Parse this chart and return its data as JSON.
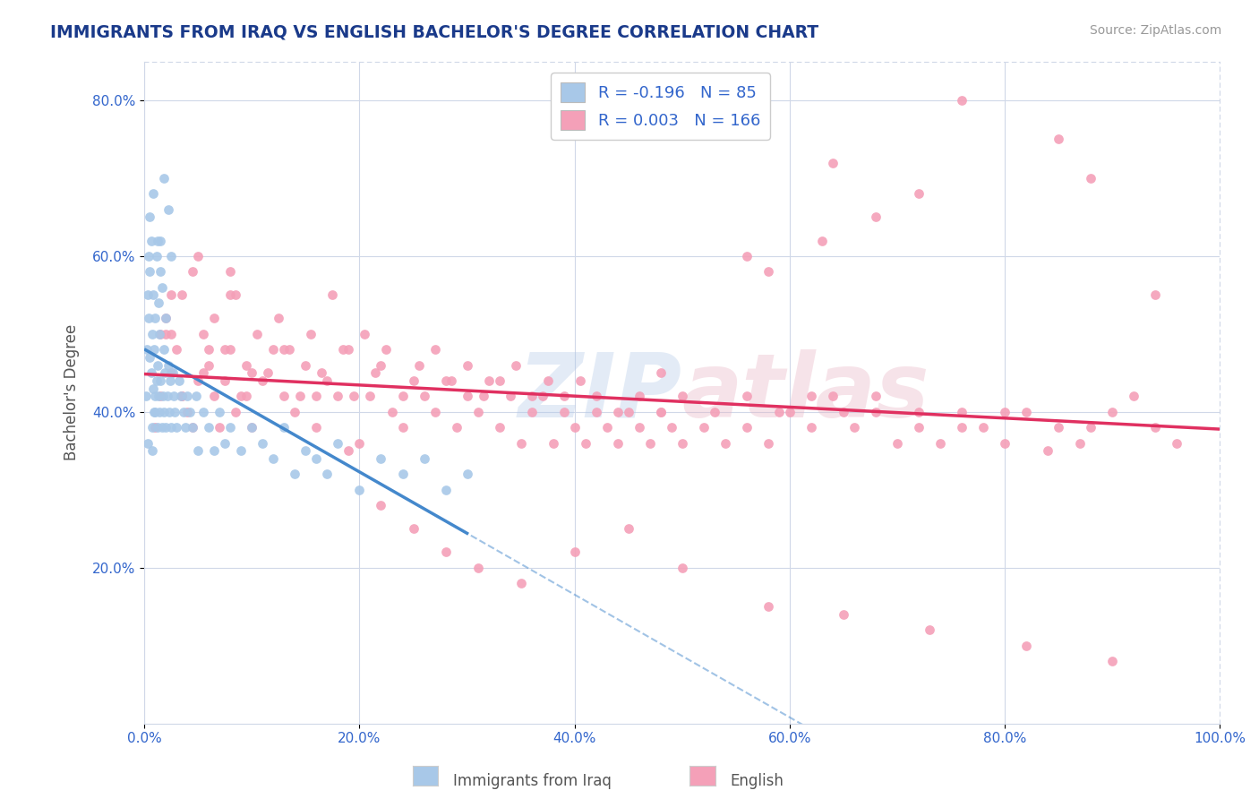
{
  "title": "IMMIGRANTS FROM IRAQ VS ENGLISH BACHELOR'S DEGREE CORRELATION CHART",
  "source_text": "Source: ZipAtlas.com",
  "ylabel": "Bachelor's Degree",
  "xlim": [
    0,
    1.0
  ],
  "ylim": [
    0,
    0.85
  ],
  "xtick_labels": [
    "0.0%",
    "20.0%",
    "40.0%",
    "60.0%",
    "80.0%",
    "100.0%"
  ],
  "xtick_vals": [
    0,
    0.2,
    0.4,
    0.6,
    0.8,
    1.0
  ],
  "ytick_labels": [
    "20.0%",
    "40.0%",
    "60.0%",
    "80.0%"
  ],
  "ytick_vals": [
    0.2,
    0.4,
    0.6,
    0.8
  ],
  "blue_R": -0.196,
  "blue_N": 85,
  "pink_R": 0.003,
  "pink_N": 166,
  "legend_label_blue": "Immigrants from Iraq",
  "legend_label_pink": "English",
  "blue_color": "#a8c8e8",
  "pink_color": "#f4a0b8",
  "blue_line_color": "#4488cc",
  "pink_line_color": "#e03060",
  "watermark_zip": "ZIP",
  "watermark_atlas": "atlas",
  "background_color": "#ffffff",
  "grid_color": "#d0d8e8",
  "title_color": "#1a3a8a",
  "source_color": "#999999",
  "tick_color": "#3366cc",
  "label_color": "#555555",
  "blue_scatter_x": [
    0.001,
    0.002,
    0.003,
    0.004,
    0.004,
    0.005,
    0.005,
    0.006,
    0.006,
    0.007,
    0.007,
    0.008,
    0.008,
    0.009,
    0.009,
    0.01,
    0.01,
    0.011,
    0.011,
    0.012,
    0.012,
    0.013,
    0.013,
    0.014,
    0.014,
    0.015,
    0.015,
    0.016,
    0.016,
    0.017,
    0.018,
    0.018,
    0.019,
    0.02,
    0.02,
    0.021,
    0.022,
    0.023,
    0.024,
    0.025,
    0.026,
    0.027,
    0.028,
    0.03,
    0.032,
    0.034,
    0.036,
    0.038,
    0.04,
    0.042,
    0.045,
    0.048,
    0.05,
    0.055,
    0.06,
    0.065,
    0.07,
    0.075,
    0.08,
    0.09,
    0.1,
    0.11,
    0.12,
    0.13,
    0.14,
    0.15,
    0.16,
    0.17,
    0.18,
    0.2,
    0.22,
    0.24,
    0.26,
    0.28,
    0.3,
    0.005,
    0.008,
    0.012,
    0.015,
    0.018,
    0.022,
    0.025,
    0.003,
    0.007,
    0.01
  ],
  "blue_scatter_y": [
    0.42,
    0.48,
    0.55,
    0.52,
    0.6,
    0.47,
    0.58,
    0.45,
    0.62,
    0.38,
    0.5,
    0.43,
    0.55,
    0.4,
    0.48,
    0.42,
    0.52,
    0.44,
    0.6,
    0.38,
    0.46,
    0.42,
    0.54,
    0.4,
    0.5,
    0.44,
    0.62,
    0.38,
    0.56,
    0.42,
    0.48,
    0.4,
    0.45,
    0.38,
    0.52,
    0.42,
    0.46,
    0.4,
    0.44,
    0.38,
    0.45,
    0.42,
    0.4,
    0.38,
    0.44,
    0.42,
    0.4,
    0.38,
    0.42,
    0.4,
    0.38,
    0.42,
    0.35,
    0.4,
    0.38,
    0.35,
    0.4,
    0.36,
    0.38,
    0.35,
    0.38,
    0.36,
    0.34,
    0.38,
    0.32,
    0.35,
    0.34,
    0.32,
    0.36,
    0.3,
    0.34,
    0.32,
    0.34,
    0.3,
    0.32,
    0.65,
    0.68,
    0.62,
    0.58,
    0.7,
    0.66,
    0.6,
    0.36,
    0.35,
    0.4
  ],
  "pink_scatter_x": [
    0.01,
    0.015,
    0.02,
    0.025,
    0.03,
    0.035,
    0.04,
    0.045,
    0.05,
    0.055,
    0.06,
    0.065,
    0.07,
    0.075,
    0.08,
    0.085,
    0.09,
    0.095,
    0.1,
    0.11,
    0.12,
    0.13,
    0.14,
    0.15,
    0.16,
    0.17,
    0.18,
    0.19,
    0.2,
    0.21,
    0.22,
    0.23,
    0.24,
    0.25,
    0.26,
    0.27,
    0.28,
    0.29,
    0.3,
    0.31,
    0.32,
    0.33,
    0.34,
    0.35,
    0.36,
    0.37,
    0.38,
    0.39,
    0.4,
    0.41,
    0.42,
    0.43,
    0.44,
    0.45,
    0.46,
    0.47,
    0.48,
    0.49,
    0.5,
    0.52,
    0.54,
    0.56,
    0.58,
    0.6,
    0.62,
    0.64,
    0.66,
    0.68,
    0.7,
    0.72,
    0.74,
    0.76,
    0.78,
    0.8,
    0.82,
    0.85,
    0.87,
    0.9,
    0.94,
    0.96,
    0.025,
    0.035,
    0.045,
    0.055,
    0.065,
    0.075,
    0.085,
    0.095,
    0.105,
    0.115,
    0.125,
    0.135,
    0.145,
    0.155,
    0.165,
    0.175,
    0.185,
    0.195,
    0.205,
    0.215,
    0.225,
    0.24,
    0.255,
    0.27,
    0.285,
    0.3,
    0.315,
    0.33,
    0.345,
    0.36,
    0.375,
    0.39,
    0.405,
    0.42,
    0.44,
    0.46,
    0.48,
    0.5,
    0.53,
    0.56,
    0.59,
    0.62,
    0.65,
    0.68,
    0.72,
    0.76,
    0.8,
    0.84,
    0.88,
    0.92,
    0.015,
    0.025,
    0.035,
    0.06,
    0.08,
    0.1,
    0.13,
    0.16,
    0.19,
    0.22,
    0.25,
    0.28,
    0.31,
    0.35,
    0.4,
    0.45,
    0.5,
    0.58,
    0.65,
    0.73,
    0.82,
    0.9,
    0.63,
    0.72,
    0.85,
    0.68,
    0.58,
    0.48,
    0.56,
    0.64,
    0.76,
    0.88,
    0.94,
    0.02,
    0.05,
    0.08
  ],
  "pink_scatter_y": [
    0.38,
    0.42,
    0.5,
    0.45,
    0.48,
    0.42,
    0.4,
    0.38,
    0.44,
    0.5,
    0.46,
    0.42,
    0.38,
    0.44,
    0.48,
    0.4,
    0.42,
    0.46,
    0.38,
    0.44,
    0.48,
    0.42,
    0.4,
    0.46,
    0.38,
    0.44,
    0.42,
    0.48,
    0.36,
    0.42,
    0.46,
    0.4,
    0.38,
    0.44,
    0.42,
    0.4,
    0.44,
    0.38,
    0.42,
    0.4,
    0.44,
    0.38,
    0.42,
    0.36,
    0.4,
    0.42,
    0.36,
    0.4,
    0.38,
    0.36,
    0.4,
    0.38,
    0.36,
    0.4,
    0.38,
    0.36,
    0.4,
    0.38,
    0.36,
    0.38,
    0.36,
    0.38,
    0.36,
    0.4,
    0.38,
    0.42,
    0.38,
    0.4,
    0.36,
    0.38,
    0.36,
    0.4,
    0.38,
    0.36,
    0.4,
    0.38,
    0.36,
    0.4,
    0.38,
    0.36,
    0.5,
    0.55,
    0.58,
    0.45,
    0.52,
    0.48,
    0.55,
    0.42,
    0.5,
    0.45,
    0.52,
    0.48,
    0.42,
    0.5,
    0.45,
    0.55,
    0.48,
    0.42,
    0.5,
    0.45,
    0.48,
    0.42,
    0.46,
    0.48,
    0.44,
    0.46,
    0.42,
    0.44,
    0.46,
    0.42,
    0.44,
    0.42,
    0.44,
    0.42,
    0.4,
    0.42,
    0.4,
    0.42,
    0.4,
    0.42,
    0.4,
    0.42,
    0.4,
    0.42,
    0.4,
    0.38,
    0.4,
    0.35,
    0.38,
    0.42,
    0.5,
    0.55,
    0.42,
    0.48,
    0.55,
    0.45,
    0.48,
    0.42,
    0.35,
    0.28,
    0.25,
    0.22,
    0.2,
    0.18,
    0.22,
    0.25,
    0.2,
    0.15,
    0.14,
    0.12,
    0.1,
    0.08,
    0.62,
    0.68,
    0.75,
    0.65,
    0.58,
    0.45,
    0.6,
    0.72,
    0.8,
    0.7,
    0.55,
    0.52,
    0.6,
    0.58
  ]
}
